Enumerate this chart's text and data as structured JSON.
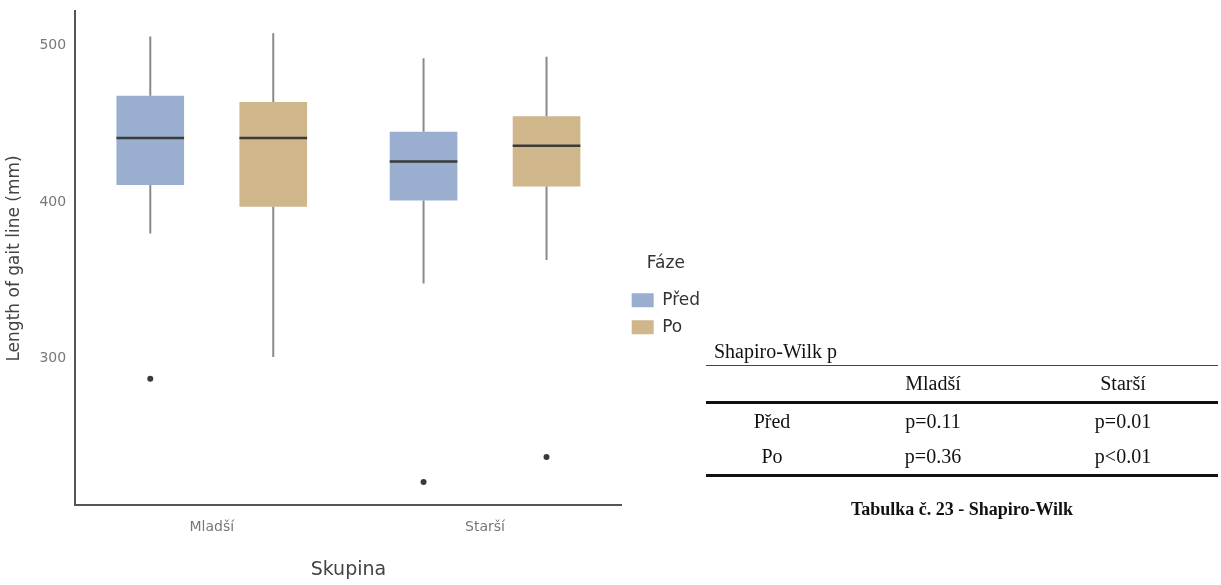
{
  "chart_data": [
    {
      "type": "box",
      "xlabel": "Skupina",
      "ylabel": "Length of gait line (mm)",
      "legend_title": "Fáze",
      "legend": "right",
      "grid": false,
      "categories": [
        "Mladší",
        "Starší"
      ],
      "ylim": [
        206,
        522
      ],
      "yticks": [
        300,
        400,
        500
      ],
      "series": [
        {
          "name": "Před",
          "color": "#9aafcf",
          "boxes": [
            {
              "low": 380,
              "q1": 411,
              "median": 441,
              "q3": 468,
              "high": 506,
              "outliers": [
                287
              ]
            },
            {
              "low": 348,
              "q1": 401,
              "median": 426,
              "q3": 445,
              "high": 492,
              "outliers": [
                221
              ]
            }
          ]
        },
        {
          "name": "Po",
          "color": "#cfb68b",
          "boxes": [
            {
              "low": 301,
              "q1": 397,
              "median": 441,
              "q3": 464,
              "high": 508
            },
            {
              "low": 363,
              "q1": 410,
              "median": 436,
              "q3": 455,
              "high": 493,
              "outliers": [
                237
              ]
            }
          ]
        }
      ]
    },
    {
      "type": "other",
      "title": "Shapiro-Wilk p",
      "categories": [
        "Mladší",
        "Starší"
      ],
      "y_categories": [
        "Před",
        "Po"
      ],
      "cell_labels": [
        [
          "p=0.11",
          "p=0.01"
        ],
        [
          "p=0.36",
          "p<0.01"
        ]
      ],
      "annotations": [
        "Tabulka č. 23 - Shapiro-Wilk"
      ]
    }
  ]
}
